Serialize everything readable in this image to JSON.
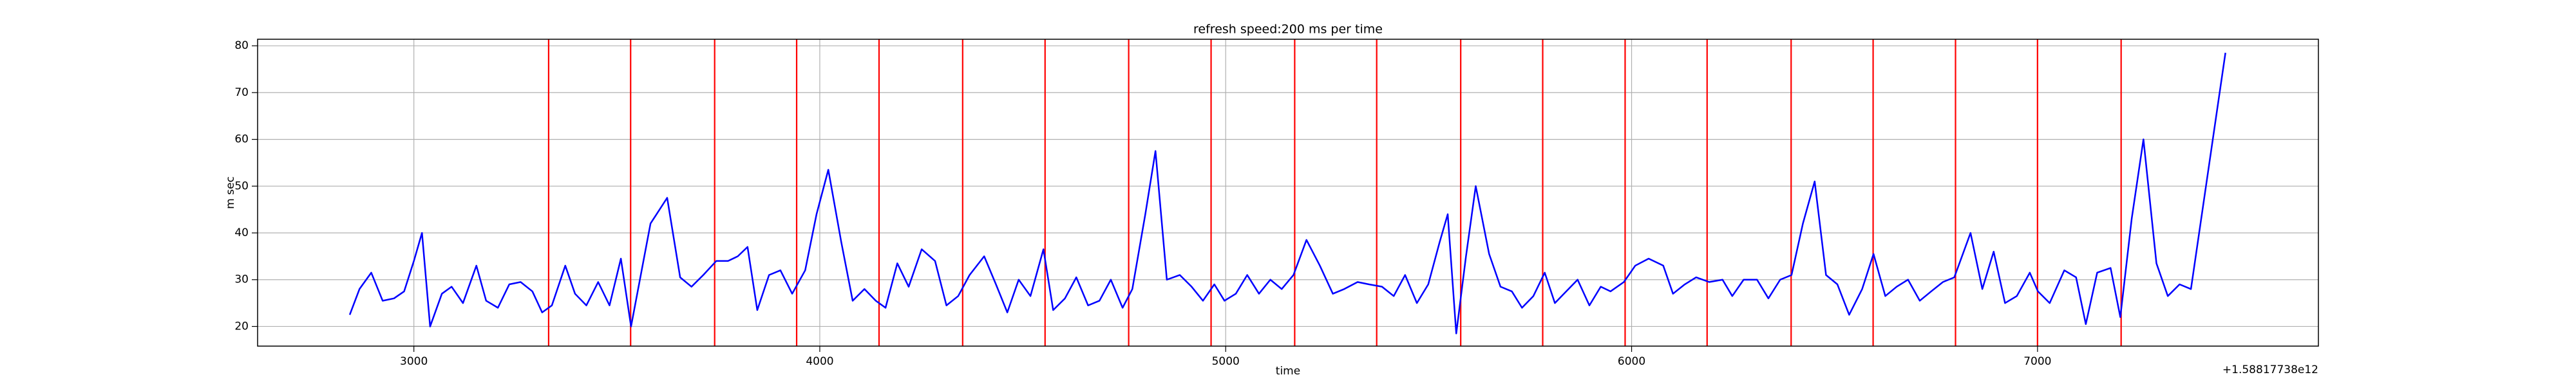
{
  "chart_data": {
    "type": "line",
    "title": "refresh speed:200 ms per time",
    "xlabel": "time",
    "ylabel": "m sec",
    "x_offset_label": "+1.58817738e12",
    "color": "blue",
    "x": [
      2842,
      2866,
      2895,
      2923,
      2951,
      2976,
      3000,
      3020,
      3040,
      3069,
      3093,
      3121,
      3154,
      3178,
      3207,
      3235,
      3263,
      3292,
      3316,
      3340,
      3373,
      3397,
      3425,
      3454,
      3482,
      3510,
      3535,
      3559,
      3583,
      3624,
      3656,
      3684,
      3713,
      3745,
      3774,
      3798,
      3822,
      3846,
      3875,
      3903,
      3932,
      3964,
      3992,
      4021,
      4053,
      4081,
      4110,
      4138,
      4162,
      4191,
      4219,
      4251,
      4284,
      4312,
      4341,
      4369,
      4405,
      4434,
      4462,
      4490,
      4519,
      4551,
      4575,
      4604,
      4632,
      4661,
      4689,
      4717,
      4746,
      4770,
      4802,
      4827,
      4855,
      4887,
      4916,
      4944,
      4972,
      4997,
      5025,
      5053,
      5082,
      5110,
      5138,
      5167,
      5199,
      5232,
      5264,
      5292,
      5325,
      5353,
      5385,
      5414,
      5442,
      5471,
      5499,
      5527,
      5547,
      5568,
      5592,
      5616,
      5649,
      5677,
      5705,
      5730,
      5758,
      5786,
      5811,
      5839,
      5867,
      5896,
      5924,
      5948,
      5981,
      6009,
      6042,
      6078,
      6102,
      6131,
      6159,
      6191,
      6224,
      6248,
      6276,
      6309,
      6337,
      6366,
      6394,
      6422,
      6451,
      6479,
      6507,
      6536,
      6568,
      6596,
      6625,
      6653,
      6681,
      6710,
      6738,
      6767,
      6795,
      6835,
      6864,
      6892,
      6920,
      6949,
      6981,
      7001,
      7030,
      7066,
      7095,
      7119,
      7147,
      7180,
      7204,
      7232,
      7261,
      7293,
      7321,
      7350,
      7378,
      7463
    ],
    "values": [
      22.5,
      28,
      31.5,
      25.5,
      26,
      27.5,
      34,
      40,
      20,
      27,
      28.5,
      25,
      33,
      25.5,
      24,
      29,
      29.5,
      27.5,
      23,
      24.5,
      33,
      27,
      24.5,
      29.5,
      24.5,
      34.5,
      20,
      31,
      42,
      47.5,
      30.5,
      28.5,
      31,
      34,
      34,
      35,
      37,
      23.5,
      31,
      32,
      27,
      32,
      44,
      53.5,
      38,
      25.5,
      28,
      25.5,
      24,
      33.5,
      28.5,
      36.5,
      34,
      24.5,
      26.5,
      31,
      35,
      29,
      23,
      30,
      26.5,
      36.5,
      23.5,
      26,
      30.5,
      24.5,
      25.5,
      30,
      24,
      28,
      44,
      57.5,
      30,
      31,
      28.5,
      25.5,
      29,
      25.5,
      27,
      31,
      27,
      30,
      28,
      31,
      38.5,
      33,
      27,
      28,
      29.5,
      29,
      28.5,
      26.5,
      31,
      25,
      29,
      38,
      44,
      18.5,
      35,
      50,
      35.5,
      28.5,
      27.5,
      24,
      26.5,
      31.5,
      25,
      27.5,
      30,
      24.5,
      28.5,
      27.5,
      29.5,
      33,
      34.5,
      33,
      27,
      29,
      30.5,
      29.5,
      30,
      26.5,
      30,
      30,
      26,
      30,
      31,
      42,
      51,
      31,
      29,
      22.5,
      28,
      35.5,
      26.5,
      28.5,
      30,
      25.5,
      27.5,
      29.5,
      30.5,
      40,
      28,
      36,
      25,
      26.5,
      31.5,
      27.5,
      25,
      32,
      30.5,
      20.5,
      31.5,
      32.5,
      22,
      43,
      60,
      33.5,
      26.5,
      29,
      28,
      78.5
    ],
    "vlines": [
      3332,
      3534,
      3741,
      3943,
      4146,
      4352,
      4555,
      4761,
      4964,
      5170,
      5372,
      5579,
      5781,
      5984,
      6186,
      6393,
      6595,
      6798,
      7000,
      7206
    ],
    "vline_color": "red",
    "xlim": [
      2615,
      7692
    ],
    "ylim": [
      15.8,
      81.4
    ],
    "xticks": [
      3000,
      4000,
      5000,
      6000,
      7000
    ],
    "yticks": [
      20,
      30,
      40,
      50,
      60,
      70,
      80
    ],
    "grid": true
  }
}
